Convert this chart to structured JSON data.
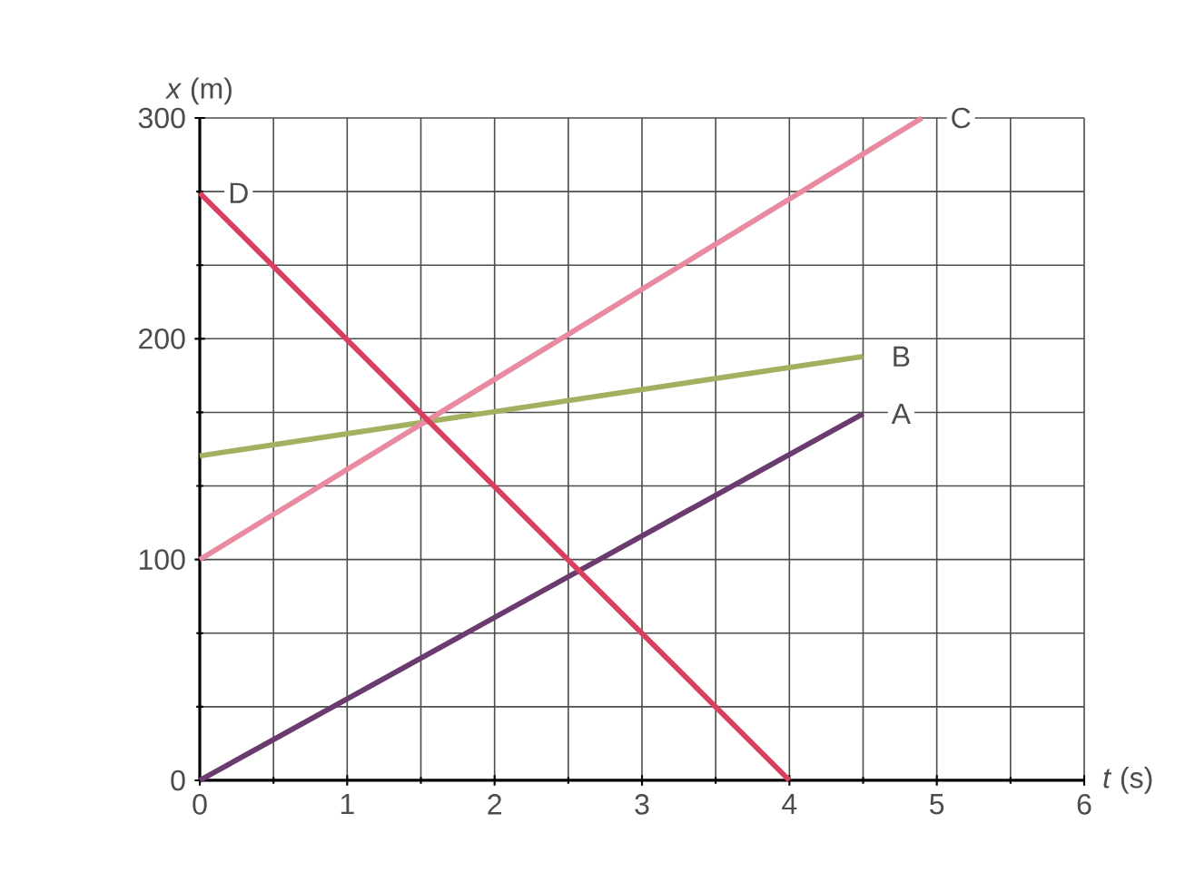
{
  "chart_data": {
    "type": "line",
    "xlabel": "*t* (s)",
    "ylabel": "*x* (m)",
    "xlim": [
      0,
      6
    ],
    "ylim": [
      0,
      300
    ],
    "xticks": [
      0,
      1,
      2,
      3,
      4,
      5,
      6
    ],
    "yticks": [
      0,
      100,
      200,
      300
    ],
    "grid": true,
    "series": [
      {
        "name": "A",
        "color": "#6b3a6e",
        "x": [
          0,
          4.5
        ],
        "values": [
          0,
          166
        ]
      },
      {
        "name": "B",
        "color": "#a3b060",
        "x": [
          0,
          4.5
        ],
        "values": [
          147,
          192
        ]
      },
      {
        "name": "C",
        "color": "#e88ba0",
        "x": [
          0,
          4.9
        ],
        "values": [
          100,
          300
        ]
      },
      {
        "name": "D",
        "color": "#d8405f",
        "x": [
          0,
          4
        ],
        "values": [
          266,
          0
        ]
      }
    ]
  }
}
